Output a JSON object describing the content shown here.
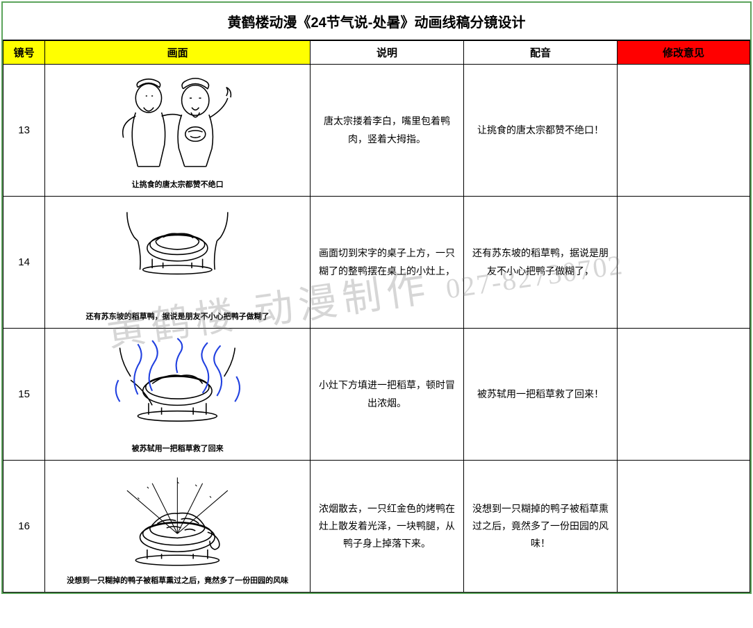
{
  "title": "黄鹤楼动漫《24节气说-处暑》动画线稿分镜设计",
  "columns": {
    "shot_num": "镜号",
    "frame": "画面",
    "description": "说明",
    "voiceover": "配音",
    "revision": "修改意见"
  },
  "column_widths": {
    "shot_num": 60,
    "frame": 380,
    "description": 220,
    "voiceover": 220,
    "revision": 190
  },
  "header_colors": {
    "yellow": "#ffff00",
    "red": "#ff0000"
  },
  "rows": [
    {
      "shot_num": "13",
      "caption": "让挑食的唐太宗都赞不绝口",
      "description": "唐太宗搂着李白，嘴里包着鸭肉，竖着大拇指。",
      "voiceover": "让挑食的唐太宗都赞不绝口！",
      "revision": "",
      "sketch_type": "two_figures"
    },
    {
      "shot_num": "14",
      "caption": "还有苏东坡的稻草鸭，据说是朋友不小心把鸭子做糊了",
      "description": "画面切到宋字的桌子上方，一只糊了的整鸭摆在桌上的小灶上，",
      "voiceover": "还有苏东坡的稻草鸭，据说是朋友不小心把鸭子做糊了，",
      "revision": "",
      "sketch_type": "table_duck"
    },
    {
      "shot_num": "15",
      "caption": "被苏轼用一把稻草救了回来",
      "description": "小灶下方填进一把稻草，顿时冒出浓烟。",
      "voiceover": "被苏轼用一把稻草救了回来！",
      "revision": "",
      "sketch_type": "smoke_bowl"
    },
    {
      "shot_num": "16",
      "caption": "没想到一只糊掉的鸭子被稻草熏过之后，竟然多了一份田园的风味",
      "description": "浓烟散去，一只红金色的烤鸭在灶上散发着光泽，一块鸭腿，从鸭子身上掉落下来。",
      "voiceover": "没想到一只糊掉的鸭子被稻草熏过之后，竟然多了一份田园的风味！",
      "revision": "",
      "sketch_type": "roast_duck"
    }
  ],
  "watermark": {
    "text": "黄鹤楼 动漫制作",
    "phone": "027-82730702",
    "color": "rgba(120,120,120,0.3)"
  },
  "border_color": "#5ba35b",
  "stroke_color": "#000000",
  "smoke_color": "#2040e0"
}
